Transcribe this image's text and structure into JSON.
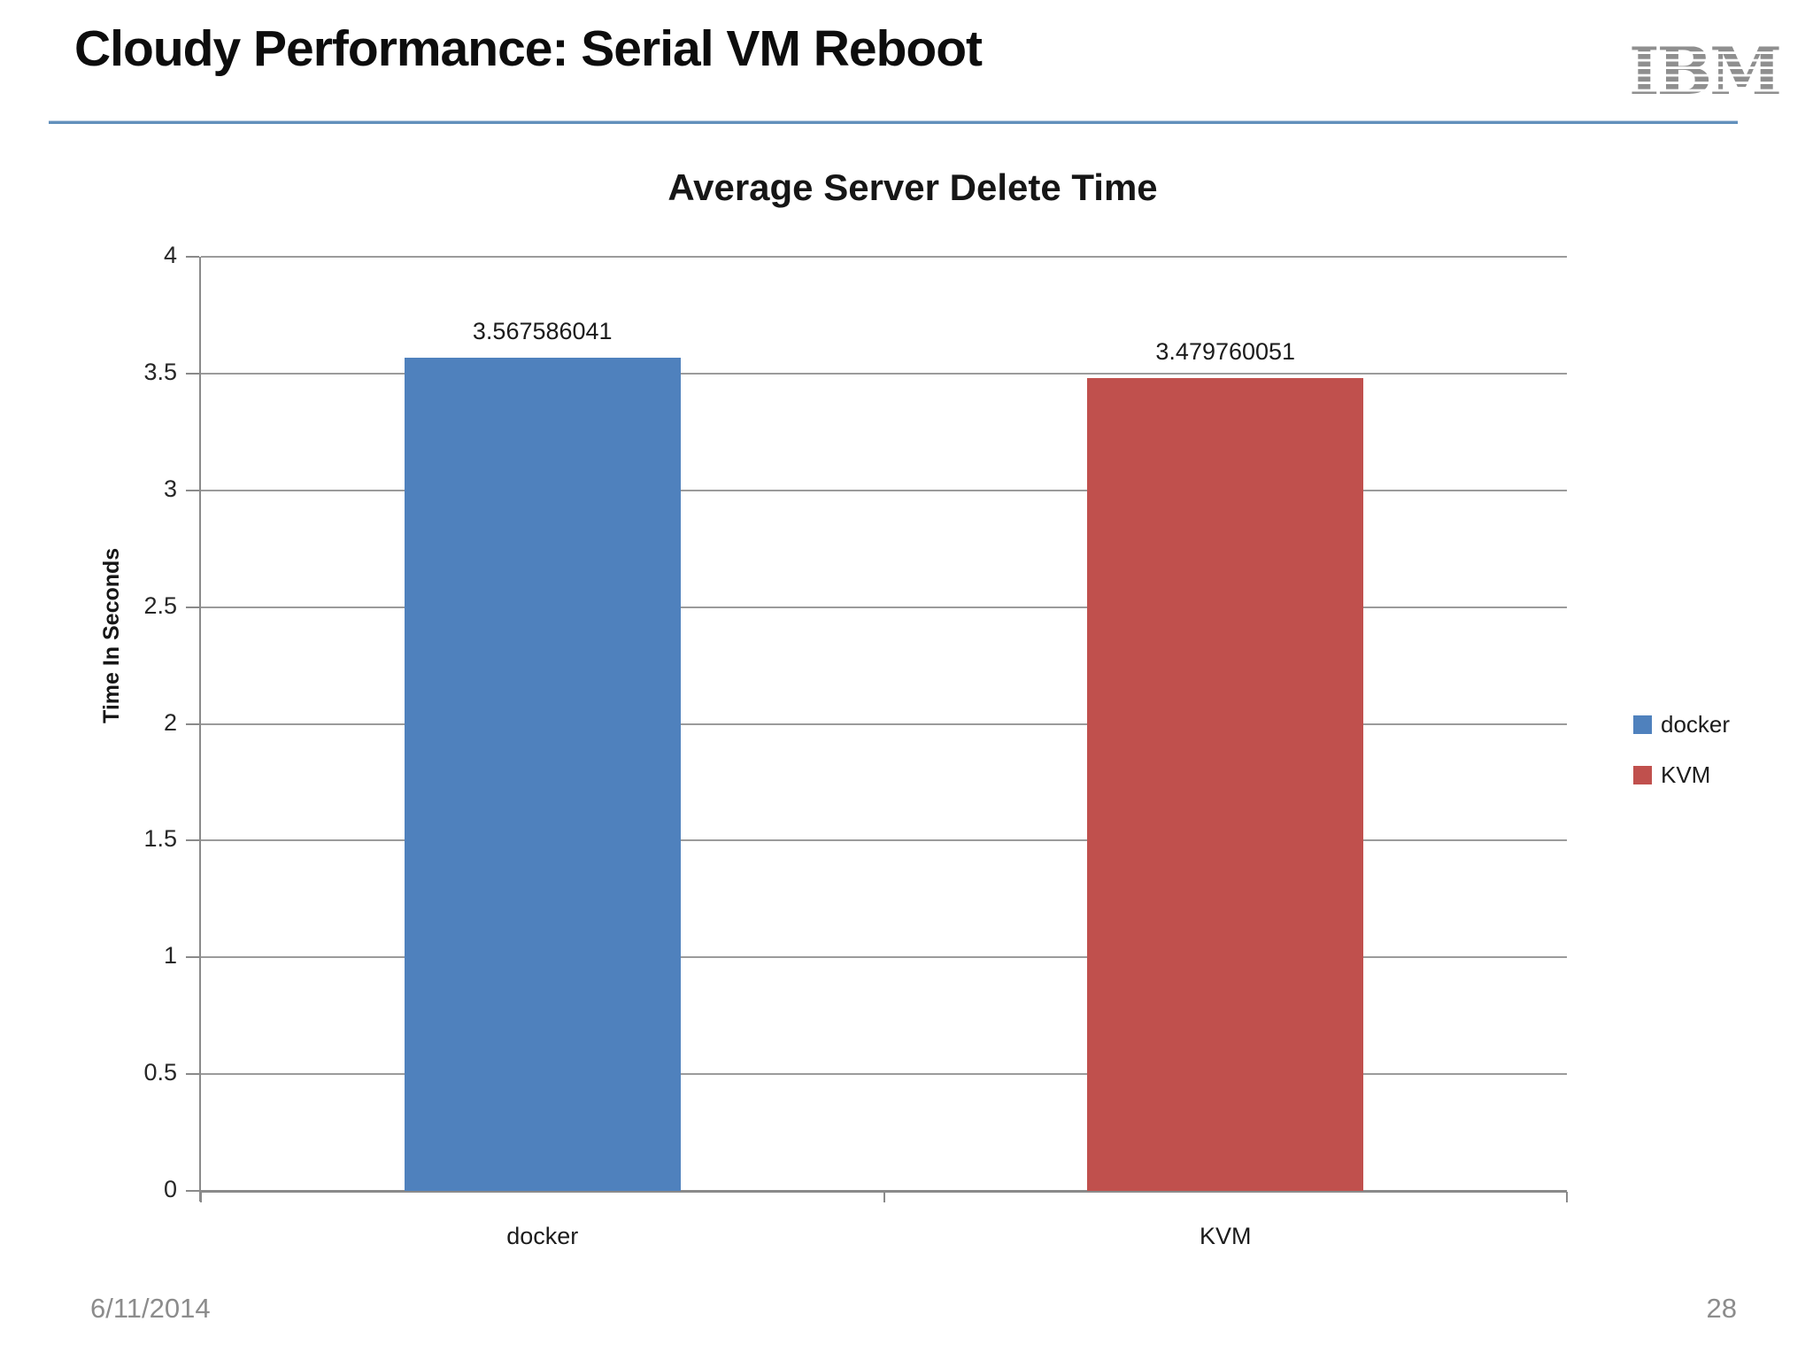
{
  "slide": {
    "title": "Cloudy Performance: Serial VM Reboot",
    "logo_text": "IBM",
    "footer_date": "6/11/2014",
    "page_number": "28"
  },
  "chart_data": {
    "type": "bar",
    "title": "Average Server Delete Time",
    "xlabel": "",
    "ylabel": "Time In Seconds",
    "categories": [
      "docker",
      "KVM"
    ],
    "values": [
      3.567586041,
      3.479760051
    ],
    "value_labels": [
      "3.567586041",
      "3.479760051"
    ],
    "bar_colors": [
      "#4f81bd",
      "#c0504d"
    ],
    "ylim": [
      0,
      4
    ],
    "yticks": [
      0,
      0.5,
      1,
      1.5,
      2,
      2.5,
      3,
      3.5,
      4
    ],
    "grid": true,
    "legend_position": "right",
    "legend": [
      {
        "label": "docker",
        "color": "#4f81bd"
      },
      {
        "label": "KVM",
        "color": "#c0504d"
      }
    ]
  },
  "colors": {
    "bar_blue": "#4f81bd",
    "bar_red": "#c0504d",
    "gridline": "#9b9b9b",
    "axis": "#8a8a8a",
    "header_rule": "#6290bc",
    "footer_text": "#8c8c8c",
    "logo_gray": "#8f8f8f"
  }
}
